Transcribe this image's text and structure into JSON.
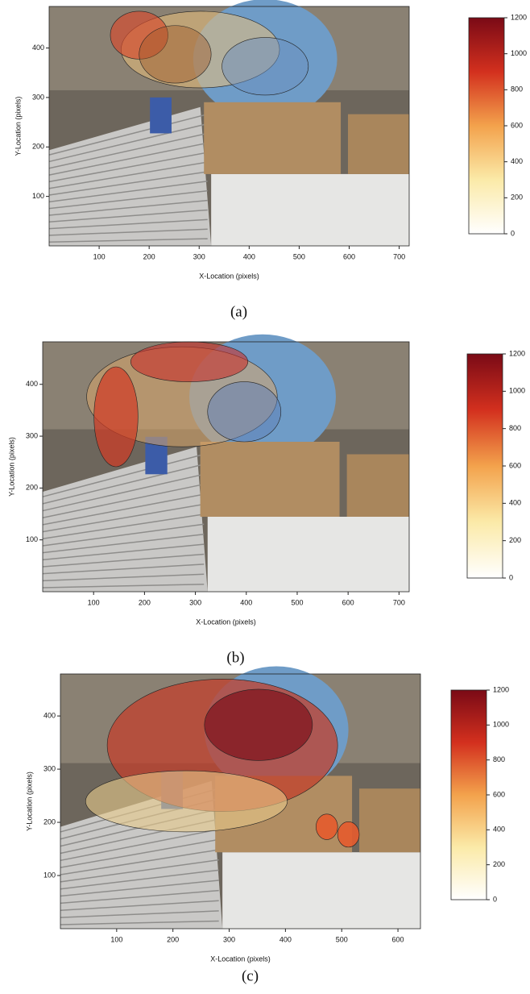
{
  "chart_data": [
    {
      "type": "heatmap",
      "caption": "(a)",
      "xlabel": "X-Location (pixels)",
      "ylabel": "Y-Location (pixels)",
      "xlim": [
        0,
        720
      ],
      "ylim": [
        0,
        484
      ],
      "xticks": [
        100,
        200,
        300,
        400,
        500,
        600,
        700
      ],
      "yticks": [
        100,
        200,
        300,
        400
      ],
      "clim": [
        0,
        1200
      ],
      "cticks": [
        0,
        200,
        400,
        600,
        800,
        1000,
        1200
      ],
      "colors": [
        "#ffffff",
        "#fbeaa8",
        "#f3a24c",
        "#d3301e",
        "#7a0a16"
      ]
    },
    {
      "type": "heatmap",
      "caption": "(b)",
      "xlabel": "X-Location (pixels)",
      "ylabel": "Y-Location (pixels)",
      "xlim": [
        0,
        720
      ],
      "ylim": [
        0,
        482
      ],
      "xticks": [
        100,
        200,
        300,
        400,
        500,
        600,
        700
      ],
      "yticks": [
        100,
        200,
        300,
        400
      ],
      "clim": [
        0,
        1200
      ],
      "cticks": [
        0,
        200,
        400,
        600,
        800,
        1000,
        1200
      ],
      "colors": [
        "#ffffff",
        "#fbeaa8",
        "#f3a24c",
        "#d3301e",
        "#7a0a16"
      ]
    },
    {
      "type": "heatmap",
      "caption": "(c)",
      "xlabel": "X-Location (pixels)",
      "ylabel": "Y-Location (pixels)",
      "xlim": [
        0,
        640
      ],
      "ylim": [
        0,
        479
      ],
      "xticks": [
        100,
        200,
        300,
        400,
        500,
        600
      ],
      "yticks": [
        100,
        200,
        300,
        400
      ],
      "clim": [
        0,
        1200
      ],
      "cticks": [
        0,
        200,
        400,
        600,
        800,
        1000,
        1200
      ],
      "colors": [
        "#ffffff",
        "#fbeaa8",
        "#f3a24c",
        "#d3301e",
        "#7a0a16"
      ]
    }
  ]
}
